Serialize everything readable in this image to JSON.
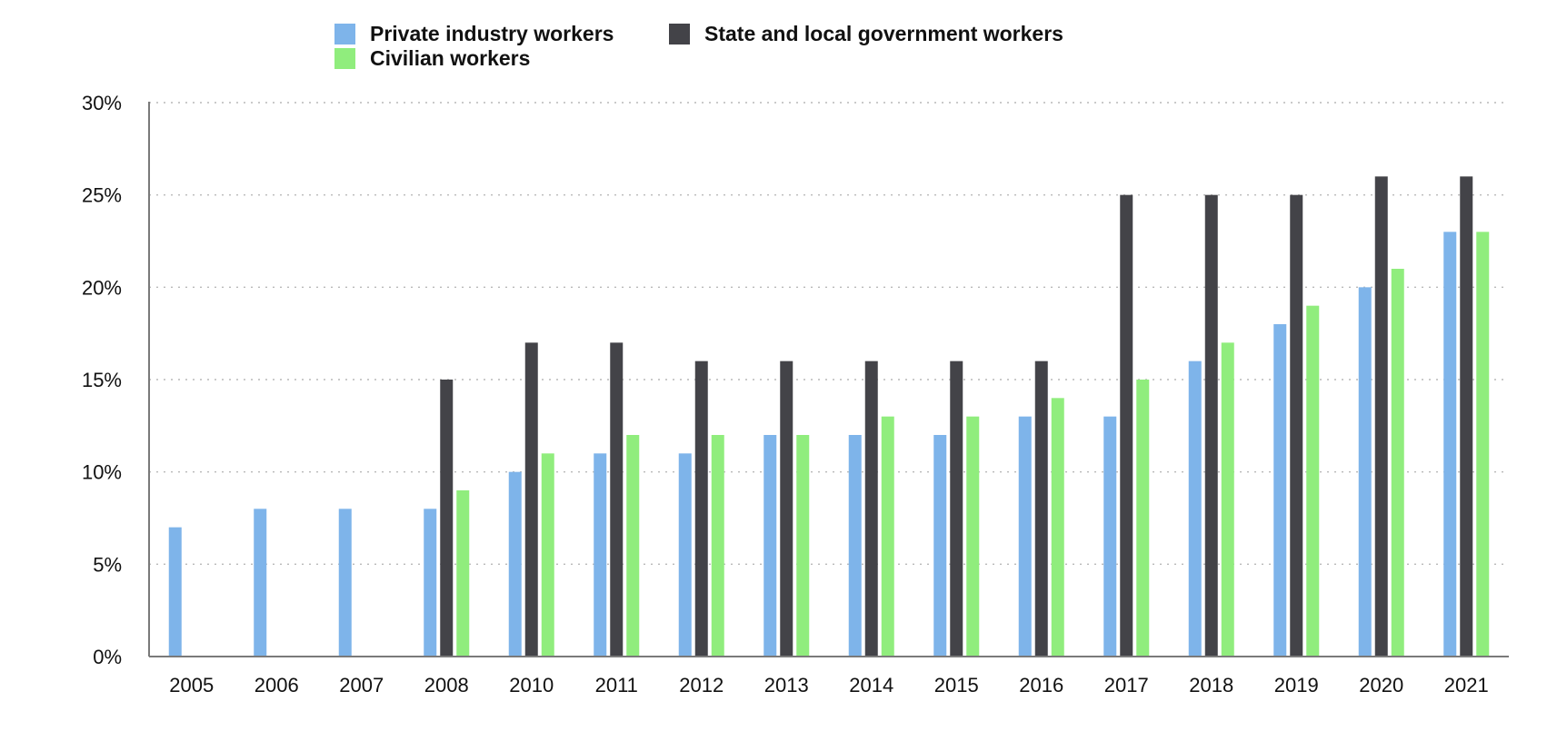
{
  "chart_data": {
    "type": "bar",
    "title": "",
    "xlabel": "",
    "ylabel": "",
    "ylim": [
      0,
      30
    ],
    "yticks": [
      0,
      5,
      10,
      15,
      20,
      25,
      30
    ],
    "ytick_labels": [
      "0%",
      "5%",
      "10%",
      "15%",
      "20%",
      "25%",
      "30%"
    ],
    "grid": true,
    "legend_position": "top",
    "categories": [
      "2005",
      "2006",
      "2007",
      "2008",
      "2010",
      "2011",
      "2012",
      "2013",
      "2014",
      "2015",
      "2016",
      "2017",
      "2018",
      "2019",
      "2020",
      "2021"
    ],
    "series": [
      {
        "name": "Private industry workers",
        "color": "#7eb4ea",
        "values": [
          7,
          8,
          8,
          8,
          10,
          11,
          11,
          12,
          12,
          12,
          13,
          13,
          16,
          18,
          20,
          23
        ]
      },
      {
        "name": "State and local government workers",
        "color": "#434348",
        "values": [
          null,
          null,
          null,
          15,
          17,
          17,
          16,
          16,
          16,
          16,
          16,
          25,
          25,
          25,
          26,
          26
        ]
      },
      {
        "name": "Civilian workers",
        "color": "#90ed7d",
        "values": [
          null,
          null,
          null,
          9,
          11,
          12,
          12,
          12,
          13,
          13,
          14,
          15,
          17,
          19,
          21,
          23
        ]
      }
    ]
  }
}
